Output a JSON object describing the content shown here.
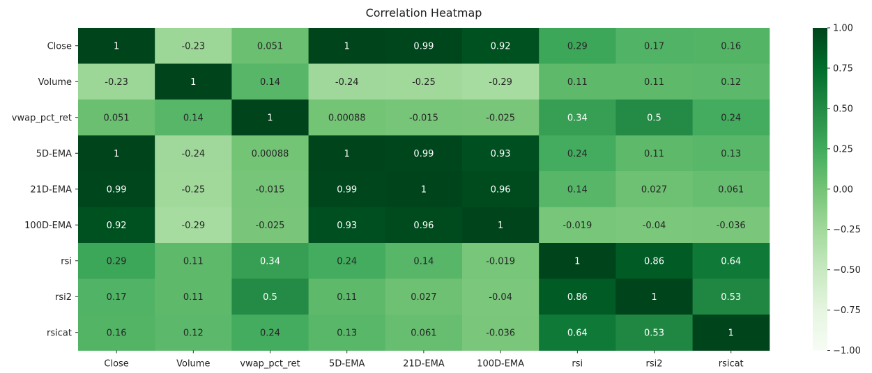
{
  "chart_data": {
    "type": "heatmap",
    "title": "Correlation Heatmap",
    "xlabel": "",
    "ylabel": "",
    "x_categories": [
      "Close",
      "Volume",
      "vwap_pct_ret",
      "5D-EMA",
      "21D-EMA",
      "100D-EMA",
      "rsi",
      "rsi2",
      "rsicat"
    ],
    "y_categories": [
      "Close",
      "Volume",
      "vwap_pct_ret",
      "5D-EMA",
      "21D-EMA",
      "100D-EMA",
      "rsi",
      "rsi2",
      "rsicat"
    ],
    "values": [
      [
        1,
        -0.23,
        0.051,
        1,
        0.99,
        0.92,
        0.29,
        0.17,
        0.16
      ],
      [
        -0.23,
        1,
        0.14,
        -0.24,
        -0.25,
        -0.29,
        0.11,
        0.11,
        0.12
      ],
      [
        0.051,
        0.14,
        1,
        0.00088,
        -0.015,
        -0.025,
        0.34,
        0.5,
        0.24
      ],
      [
        1,
        -0.24,
        0.00088,
        1,
        0.99,
        0.93,
        0.24,
        0.11,
        0.13
      ],
      [
        0.99,
        -0.25,
        -0.015,
        0.99,
        1,
        0.96,
        0.14,
        0.027,
        0.061
      ],
      [
        0.92,
        -0.29,
        -0.025,
        0.93,
        0.96,
        1,
        -0.019,
        -0.04,
        -0.036
      ],
      [
        0.29,
        0.11,
        0.34,
        0.24,
        0.14,
        -0.019,
        1,
        0.86,
        0.64
      ],
      [
        0.17,
        0.11,
        0.5,
        0.11,
        0.027,
        -0.04,
        0.86,
        1,
        0.53
      ],
      [
        0.16,
        0.12,
        0.24,
        0.13,
        0.061,
        -0.036,
        0.64,
        0.53,
        1
      ]
    ],
    "value_labels": [
      [
        "1",
        "-0.23",
        "0.051",
        "1",
        "0.99",
        "0.92",
        "0.29",
        "0.17",
        "0.16"
      ],
      [
        "-0.23",
        "1",
        "0.14",
        "-0.24",
        "-0.25",
        "-0.29",
        "0.11",
        "0.11",
        "0.12"
      ],
      [
        "0.051",
        "0.14",
        "1",
        "0.00088",
        "-0.015",
        "-0.025",
        "0.34",
        "0.5",
        "0.24"
      ],
      [
        "1",
        "-0.24",
        "0.00088",
        "1",
        "0.99",
        "0.93",
        "0.24",
        "0.11",
        "0.13"
      ],
      [
        "0.99",
        "-0.25",
        "-0.015",
        "0.99",
        "1",
        "0.96",
        "0.14",
        "0.027",
        "0.061"
      ],
      [
        "0.92",
        "-0.29",
        "-0.025",
        "0.93",
        "0.96",
        "1",
        "-0.019",
        "-0.04",
        "-0.036"
      ],
      [
        "0.29",
        "0.11",
        "0.34",
        "0.24",
        "0.14",
        "-0.019",
        "1",
        "0.86",
        "0.64"
      ],
      [
        "0.17",
        "0.11",
        "0.5",
        "0.11",
        "0.027",
        "-0.04",
        "0.86",
        "1",
        "0.53"
      ],
      [
        "0.16",
        "0.12",
        "0.24",
        "0.13",
        "0.061",
        "-0.036",
        "0.64",
        "0.53",
        "1"
      ]
    ],
    "colorscale": {
      "name": "Greens",
      "min": -1,
      "max": 1,
      "ticks": [
        1.0,
        0.75,
        0.5,
        0.25,
        0.0,
        -0.25,
        -0.5,
        -0.75,
        -1.0
      ],
      "tick_labels": [
        "1.00",
        "0.75",
        "0.50",
        "0.25",
        "0.00",
        "−0.25",
        "−0.50",
        "−0.75",
        "−1.00"
      ],
      "stops": [
        "#f7fcf5",
        "#e5f5e0",
        "#c7e9c0",
        "#a1d99b",
        "#74c476",
        "#41ab5d",
        "#238b45",
        "#006d2c",
        "#00441b"
      ]
    },
    "colorbar_placement": "right",
    "grid": false
  }
}
